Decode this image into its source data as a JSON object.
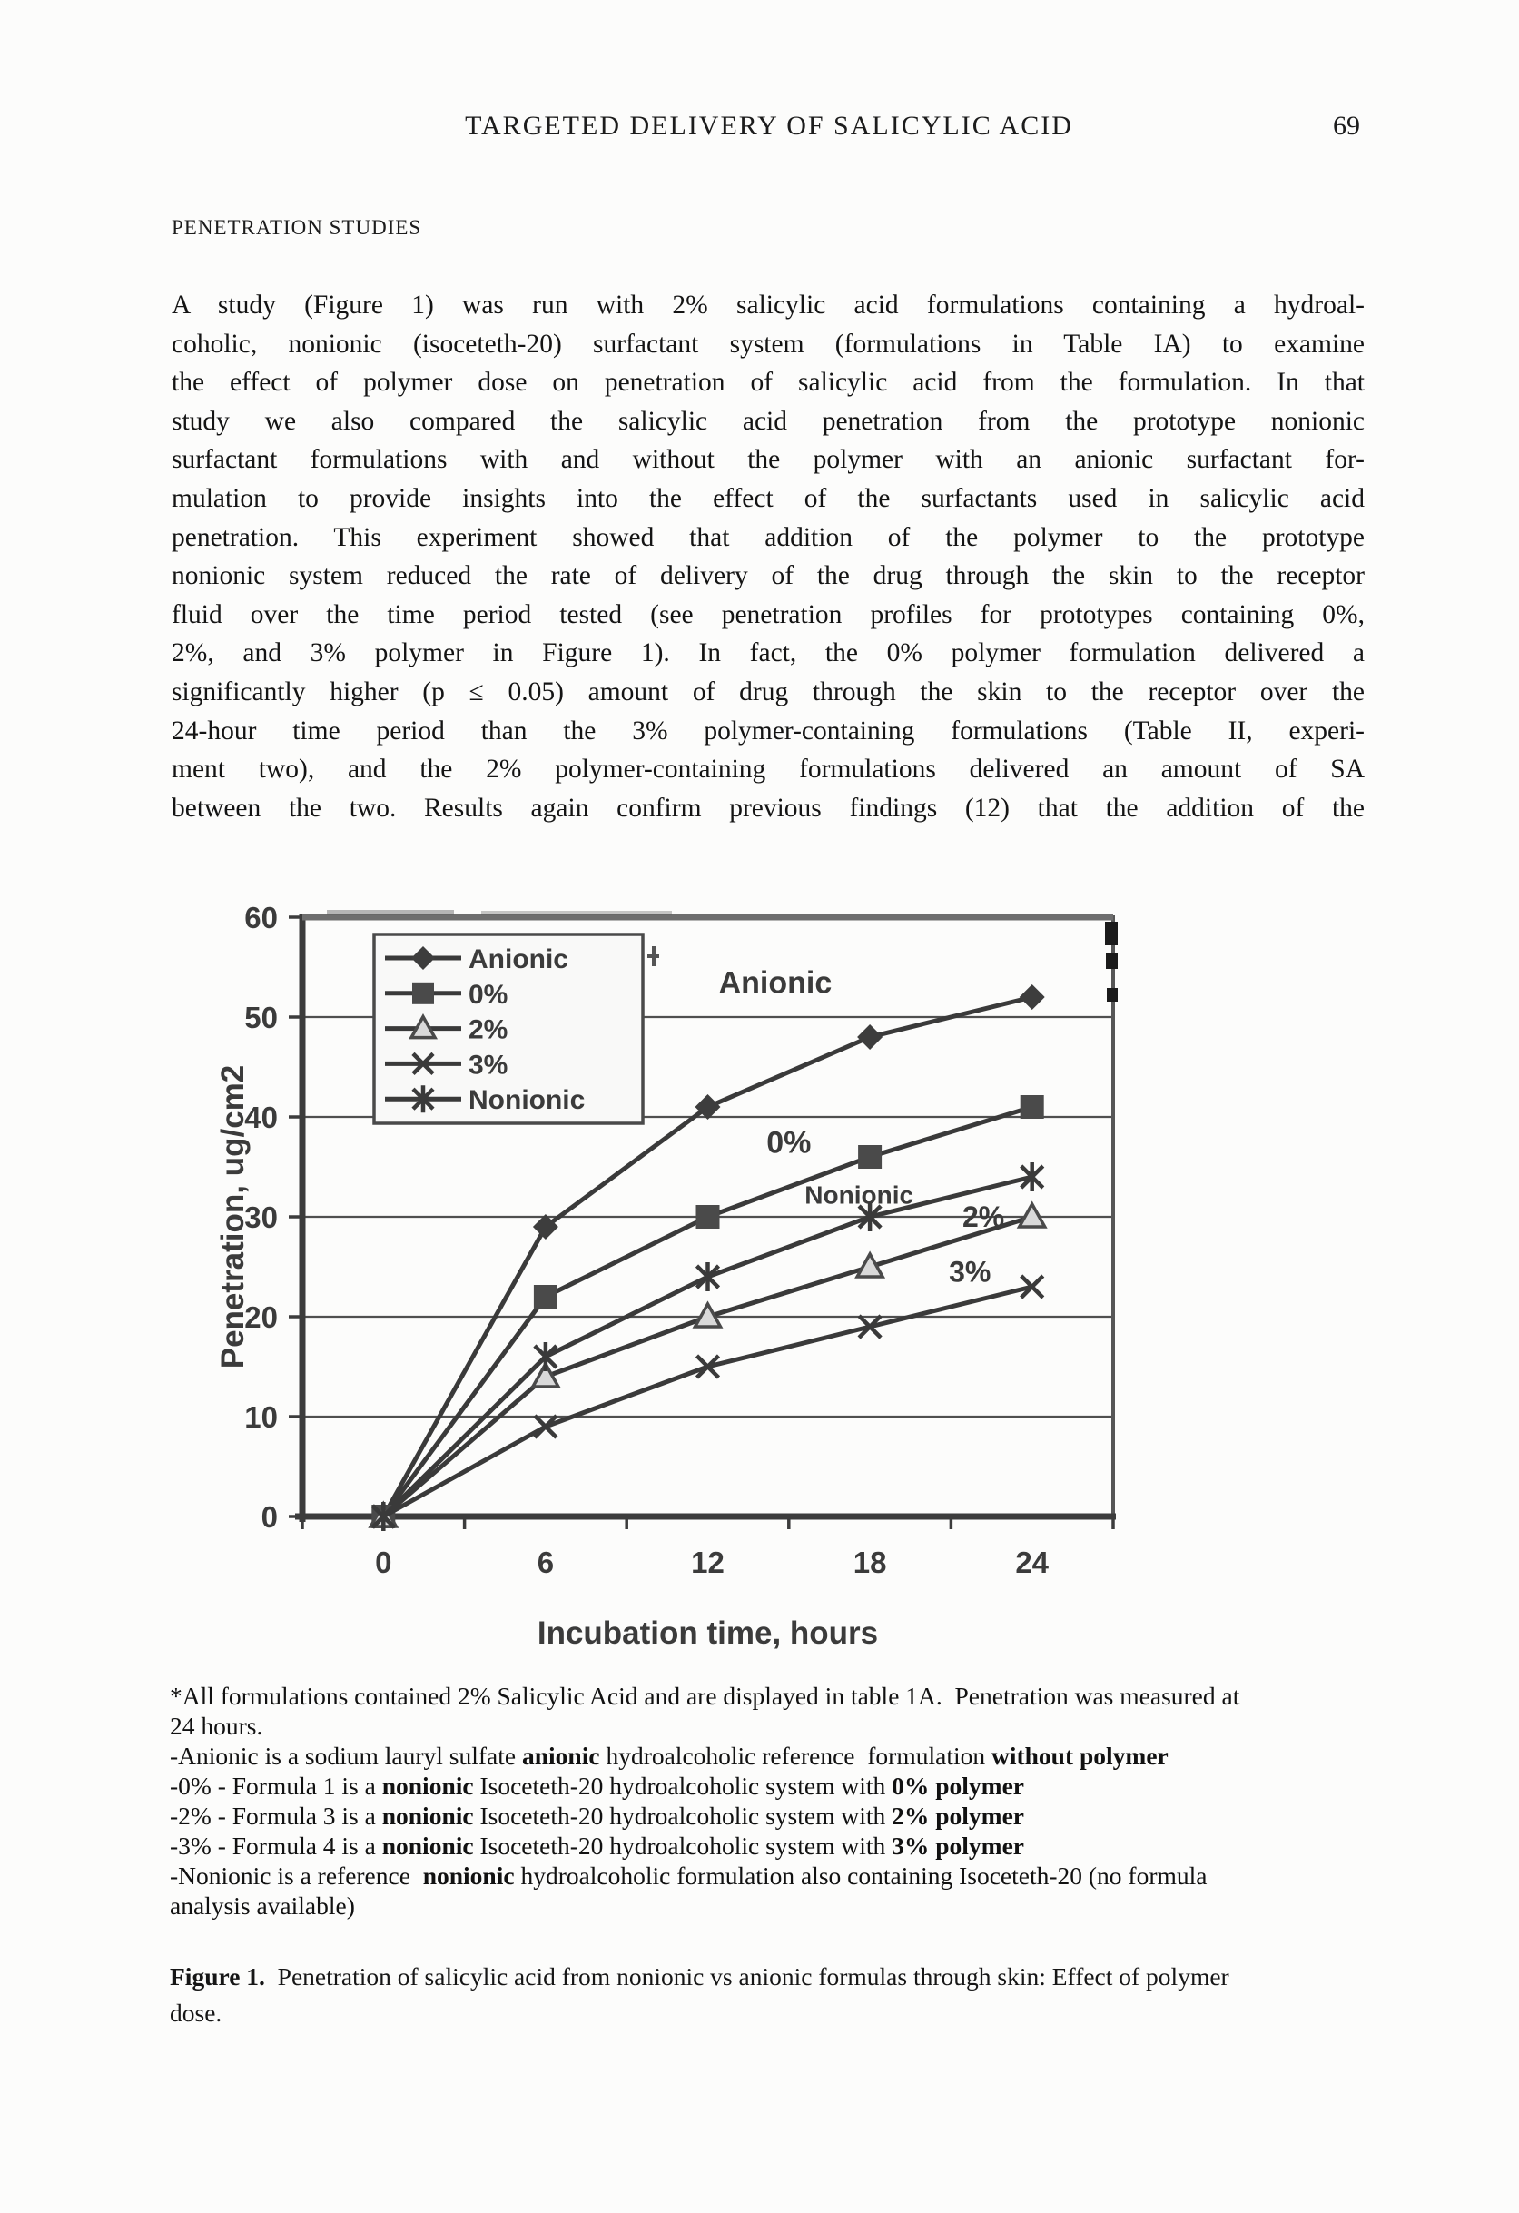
{
  "header": {
    "title": "TARGETED DELIVERY OF SALICYLIC ACID",
    "page_number": "69"
  },
  "section_heading": "PENETRATION STUDIES",
  "paragraph_lines": [
    "A study (Figure 1) was run with 2% salicylic acid formulations containing a hydroal-",
    "coholic, nonionic (isoceteth-20) surfactant system (formulations in Table IA) to examine",
    "the effect of polymer dose on penetration of salicylic acid from the formulation. In that",
    "study we also compared the salicylic acid penetration from the prototype nonionic",
    "surfactant formulations with and without the polymer with an anionic surfactant for-",
    "mulation to provide insights into the effect of the surfactants used in salicylic acid",
    "penetration. This experiment showed that addition of the polymer to the prototype",
    "nonionic system reduced the rate of delivery of the drug through the skin to the receptor",
    "fluid over the time period tested (see penetration profiles for prototypes containing 0%,",
    "2%, and 3% polymer in Figure 1). In fact, the 0% polymer formulation delivered a",
    "significantly higher (p ≤ 0.05) amount of drug through the skin to the receptor over the",
    "24-hour time period than the 3% polymer-containing formulations (Table II, experi-",
    "ment two), and the 2% polymer-containing formulations delivered an amount of SA",
    "between the two. Results again confirm previous findings (12) that the addition of the"
  ],
  "chart_data": {
    "type": "line",
    "xlabel": "Incubation time, hours",
    "ylabel": "Penetration, ug/cm2",
    "x": [
      0,
      6,
      12,
      18,
      24
    ],
    "xtick_labels": [
      "0",
      "6",
      "12",
      "18",
      "24"
    ],
    "ylim": [
      0,
      60
    ],
    "yticks": [
      0,
      10,
      20,
      30,
      40,
      50,
      60
    ],
    "grid": "horizontal",
    "legend_position": "top-left-inside",
    "series": [
      {
        "name": "Anionic",
        "marker": "diamond",
        "values": [
          0,
          29,
          41,
          48,
          52
        ]
      },
      {
        "name": "0%",
        "marker": "square",
        "values": [
          0,
          22,
          30,
          36,
          41
        ]
      },
      {
        "name": "2%",
        "marker": "triangle",
        "values": [
          0,
          14,
          20,
          25,
          30
        ]
      },
      {
        "name": "3%",
        "marker": "x",
        "values": [
          0,
          9,
          15,
          19,
          23
        ]
      },
      {
        "name": "Nonionic",
        "marker": "asterisk",
        "values": [
          0,
          16,
          24,
          30,
          34
        ]
      }
    ],
    "annotations": [
      {
        "text": "Anionic",
        "x": 14.5,
        "y": 53.5,
        "size": 34
      },
      {
        "text": "0%",
        "x": 15.0,
        "y": 37.5,
        "size": 34
      },
      {
        "text": "Nonionic",
        "x": 17.6,
        "y": 32.2,
        "size": 28
      },
      {
        "text": "2%",
        "x": 22.2,
        "y": 30.0,
        "size": 32
      },
      {
        "text": "3%",
        "x": 21.7,
        "y": 24.5,
        "size": 32
      }
    ],
    "line_color": "#3a3a3a",
    "text_color": "#3b3b3b"
  },
  "footnote_lines": [
    "*All formulations contained 2% Salicylic Acid and are displayed in table 1A.  Penetration was measured at",
    "24 hours.",
    "-Anionic is a sodium lauryl sulfate **anionic** hydroalcoholic reference  formulation **without polymer**",
    "-0% - Formula 1 is a **nonionic** Isoceteth-20 hydroalcoholic system with **0% polymer**",
    "-2% - Formula 3 is a **nonionic** Isoceteth-20 hydroalcoholic system with **2% polymer**",
    "-3% - Formula 4 is a **nonionic** Isoceteth-20 hydroalcoholic system with **3% polymer**",
    "-Nonionic is a reference  **nonionic** hydroalcoholic formulation also containing Isoceteth-20 (no formula",
    "analysis available)"
  ],
  "caption_lines": [
    "**Figure 1.**  Penetration of salicylic acid from nonionic vs anionic formulas through skin: Effect of polymer",
    "dose."
  ]
}
